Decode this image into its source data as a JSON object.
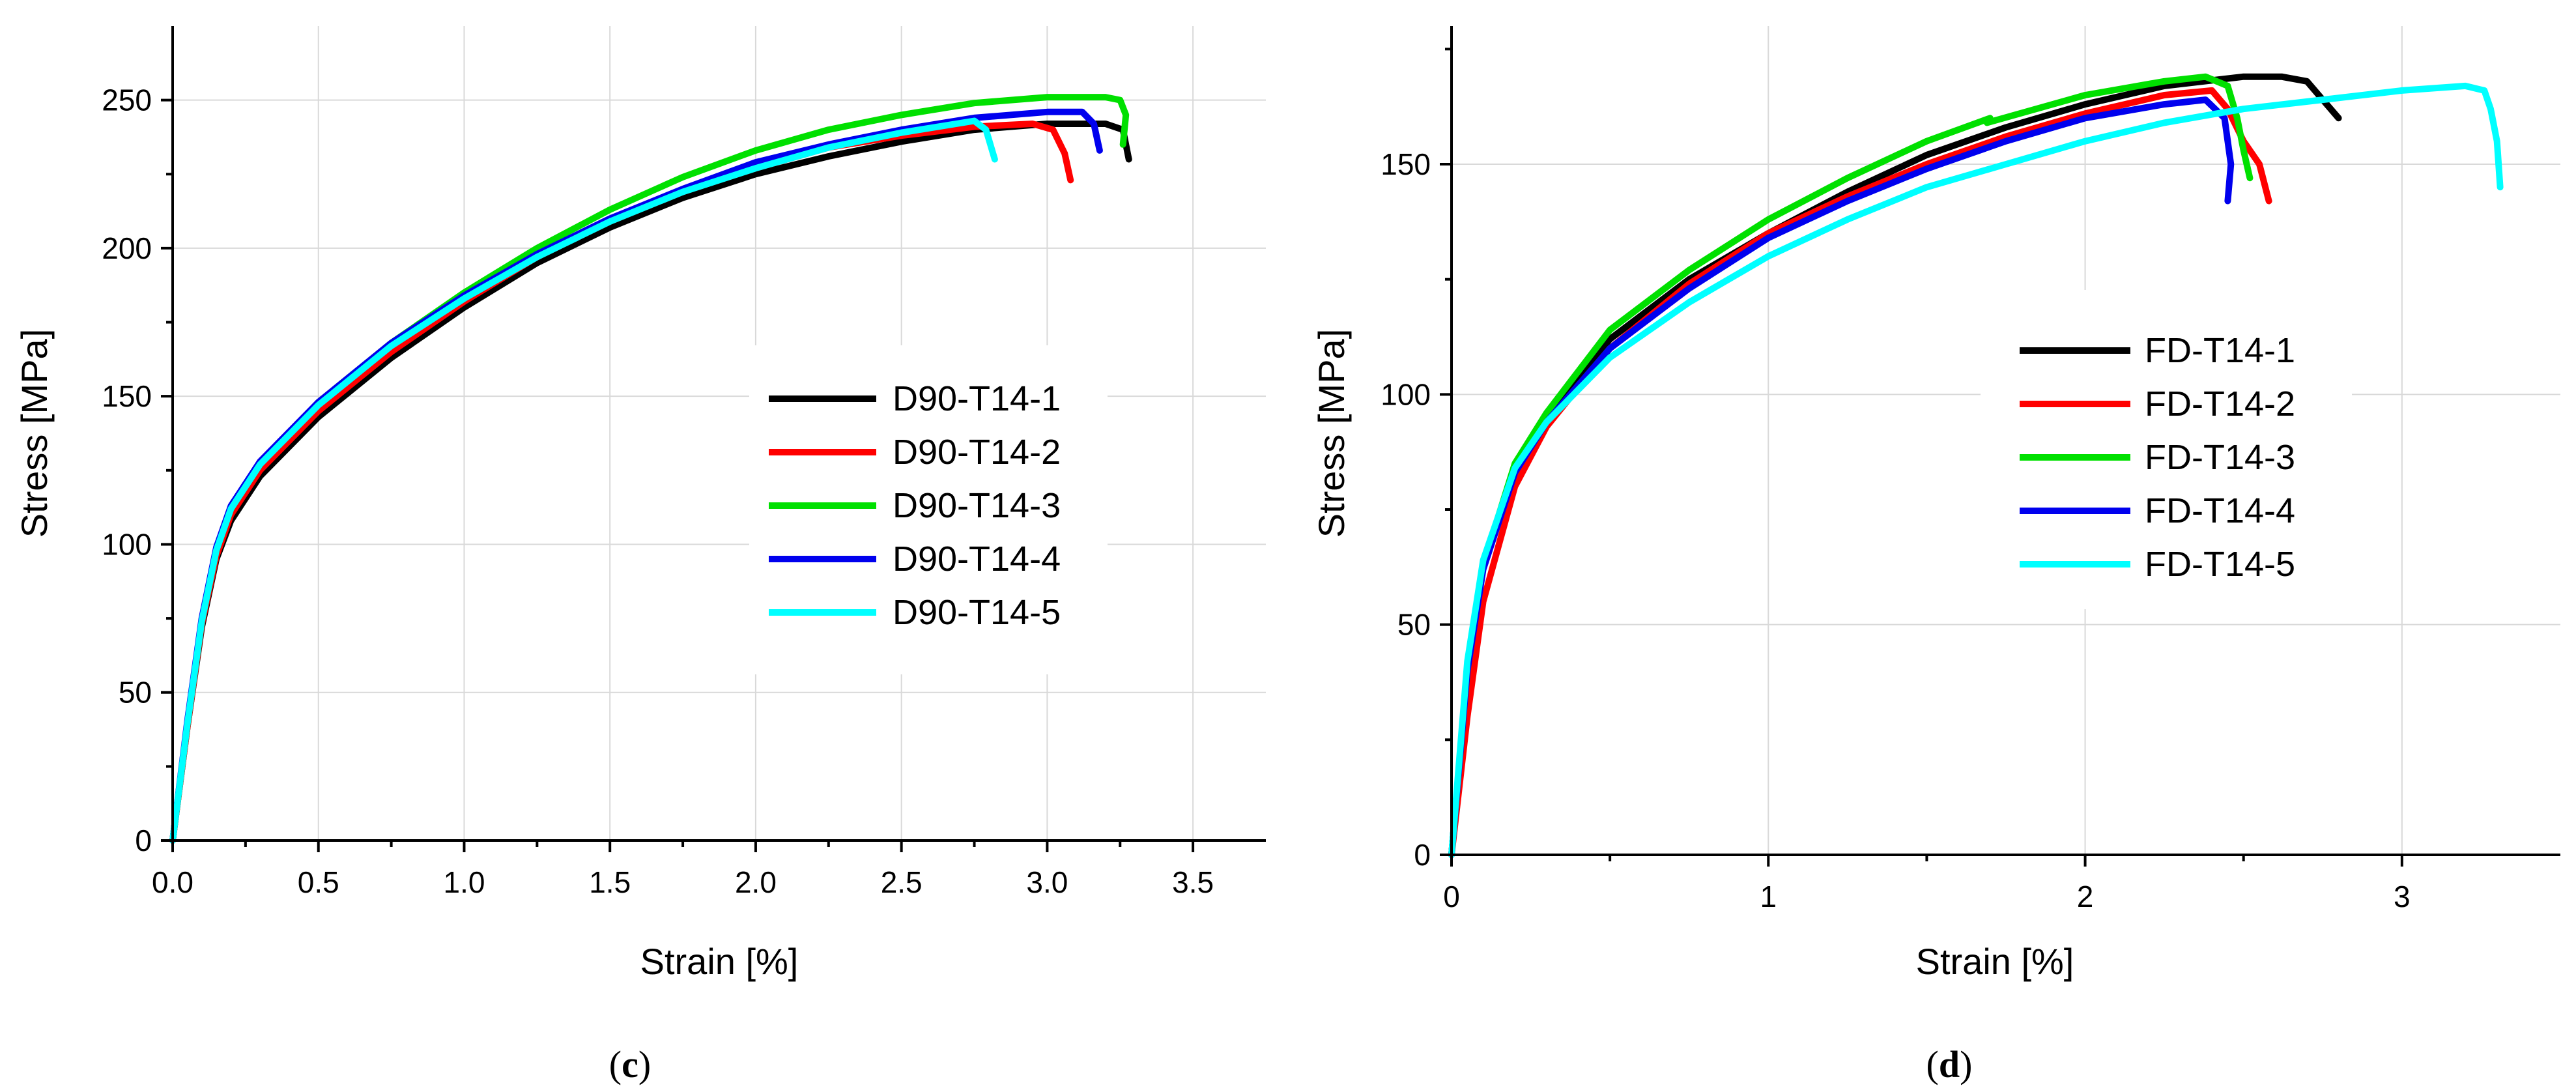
{
  "chart_data": [
    {
      "type": "line",
      "caption": "c",
      "xlabel": "Strain [%]",
      "ylabel": "Stress [MPa]",
      "xlim": [
        0,
        3.75
      ],
      "ylim": [
        0,
        275
      ],
      "xticks": [
        0.0,
        0.5,
        1.0,
        1.5,
        2.0,
        2.5,
        3.0,
        3.5
      ],
      "xtick_labels": [
        "0.0",
        "0.5",
        "1.0",
        "1.5",
        "2.0",
        "2.5",
        "3.0",
        "3.5"
      ],
      "yticks": [
        0,
        50,
        100,
        150,
        200,
        250
      ],
      "ytick_labels": [
        "0",
        "50",
        "100",
        "150",
        "200",
        "250"
      ],
      "grid": true,
      "legend_position": "center-right",
      "series": [
        {
          "name": "D90-T14-1",
          "color": "#000000",
          "x": [
            0,
            0.05,
            0.1,
            0.15,
            0.2,
            0.3,
            0.5,
            0.75,
            1.0,
            1.25,
            1.5,
            1.75,
            2.0,
            2.25,
            2.5,
            2.75,
            3.0,
            3.2,
            3.26,
            3.28
          ],
          "y": [
            0,
            38,
            72,
            95,
            108,
            123,
            143,
            163,
            180,
            195,
            207,
            217,
            225,
            231,
            236,
            240,
            242,
            242,
            240,
            230
          ]
        },
        {
          "name": "D90-T14-2",
          "color": "#ff0000",
          "x": [
            0,
            0.05,
            0.1,
            0.15,
            0.2,
            0.3,
            0.5,
            0.75,
            1.0,
            1.25,
            1.5,
            1.75,
            2.0,
            2.25,
            2.5,
            2.75,
            2.95,
            3.02,
            3.06,
            3.08
          ],
          "y": [
            0,
            38,
            73,
            96,
            110,
            125,
            145,
            165,
            182,
            197,
            209,
            219,
            227,
            234,
            238,
            241,
            242,
            240,
            232,
            223
          ]
        },
        {
          "name": "D90-T14-3",
          "color": "#00e000",
          "x": [
            0,
            0.05,
            0.1,
            0.15,
            0.2,
            0.3,
            0.5,
            0.75,
            1.0,
            1.25,
            1.5,
            1.75,
            2.0,
            2.25,
            2.5,
            2.75,
            3.0,
            3.2,
            3.25,
            3.27,
            3.26
          ],
          "y": [
            0,
            39,
            74,
            98,
            112,
            127,
            148,
            168,
            185,
            200,
            213,
            224,
            233,
            240,
            245,
            249,
            251,
            251,
            250,
            245,
            235
          ]
        },
        {
          "name": "D90-T14-4",
          "color": "#0000ee",
          "x": [
            0,
            0.05,
            0.1,
            0.15,
            0.2,
            0.3,
            0.5,
            0.75,
            1.0,
            1.25,
            1.5,
            1.75,
            2.0,
            2.25,
            2.5,
            2.75,
            3.0,
            3.12,
            3.16,
            3.18
          ],
          "y": [
            0,
            40,
            75,
            99,
            113,
            128,
            148,
            168,
            184,
            198,
            210,
            220,
            229,
            235,
            240,
            244,
            246,
            246,
            242,
            233
          ]
        },
        {
          "name": "D90-T14-5",
          "color": "#00ffff",
          "x": [
            0,
            0.05,
            0.1,
            0.15,
            0.2,
            0.3,
            0.5,
            0.75,
            1.0,
            1.25,
            1.5,
            1.75,
            2.0,
            2.25,
            2.5,
            2.75,
            2.79,
            2.82
          ],
          "y": [
            0,
            39,
            74,
            98,
            112,
            127,
            147,
            167,
            183,
            197,
            209,
            219,
            227,
            234,
            239,
            243,
            240,
            230
          ]
        }
      ]
    },
    {
      "type": "line",
      "caption": "d",
      "xlabel": "Strain [%]",
      "ylabel": "Stress [MPa]",
      "xlim": [
        0,
        3.5
      ],
      "ylim": [
        0,
        180
      ],
      "xticks": [
        0,
        1,
        2,
        3
      ],
      "xtick_labels": [
        "0",
        "1",
        "2",
        "3"
      ],
      "yticks": [
        0,
        50,
        100,
        150
      ],
      "ytick_labels": [
        "0",
        "50",
        "100",
        "150"
      ],
      "grid": true,
      "legend_position": "center-right",
      "series": [
        {
          "name": "FD-T14-1",
          "color": "#000000",
          "x": [
            0,
            0.05,
            0.1,
            0.2,
            0.3,
            0.5,
            0.75,
            1.0,
            1.25,
            1.5,
            1.75,
            2.0,
            2.25,
            2.5,
            2.62,
            2.7,
            2.75,
            2.8
          ],
          "y": [
            0,
            40,
            63,
            84,
            95,
            112,
            125,
            135,
            144,
            152,
            158,
            163,
            167,
            169,
            169,
            168,
            164,
            160
          ]
        },
        {
          "name": "FD-T14-2",
          "color": "#ff0000",
          "x": [
            0,
            0.05,
            0.1,
            0.2,
            0.3,
            0.5,
            0.75,
            1.0,
            1.25,
            1.5,
            1.75,
            2.0,
            2.25,
            2.4,
            2.45,
            2.5,
            2.55,
            2.58
          ],
          "y": [
            0,
            30,
            55,
            80,
            93,
            110,
            124,
            135,
            143,
            150,
            156,
            161,
            165,
            166,
            162,
            155,
            150,
            142
          ]
        },
        {
          "name": "FD-T14-3",
          "color": "#00e000",
          "x": [
            0,
            0.05,
            0.1,
            0.2,
            0.3,
            0.5,
            0.75,
            1.0,
            1.25,
            1.5,
            1.7,
            1.69,
            2.0,
            2.25,
            2.38,
            2.45,
            2.48,
            2.5,
            2.52
          ],
          "y": [
            0,
            40,
            63,
            85,
            96,
            114,
            127,
            138,
            147,
            155,
            160,
            159,
            165,
            168,
            169,
            167,
            160,
            153,
            147
          ]
        },
        {
          "name": "FD-T14-4",
          "color": "#0000ee",
          "x": [
            0,
            0.05,
            0.1,
            0.2,
            0.3,
            0.5,
            0.75,
            1.0,
            1.25,
            1.5,
            1.75,
            2.0,
            2.25,
            2.38,
            2.44,
            2.46,
            2.45
          ],
          "y": [
            0,
            40,
            62,
            83,
            94,
            110,
            123,
            134,
            142,
            149,
            155,
            160,
            163,
            164,
            160,
            150,
            142
          ]
        },
        {
          "name": "FD-T14-5",
          "color": "#00ffff",
          "x": [
            0,
            0.05,
            0.1,
            0.2,
            0.3,
            0.5,
            0.75,
            1.0,
            1.25,
            1.5,
            1.75,
            2.0,
            2.25,
            2.5,
            2.75,
            3.0,
            3.2,
            3.26,
            3.28,
            3.3,
            3.31
          ],
          "y": [
            0,
            42,
            64,
            84,
            94,
            108,
            120,
            130,
            138,
            145,
            150,
            155,
            159,
            162,
            164,
            166,
            167,
            166,
            162,
            155,
            145
          ]
        }
      ]
    }
  ]
}
